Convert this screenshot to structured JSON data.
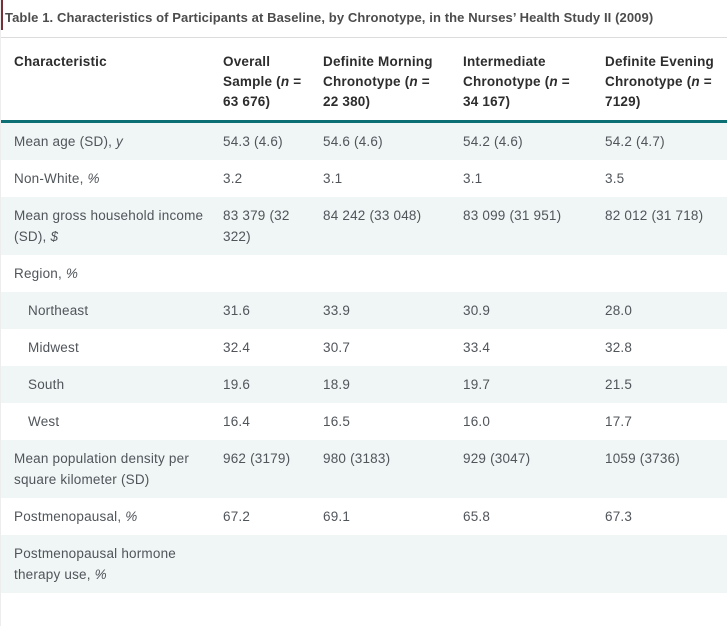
{
  "title": "Table 1. Characteristics of Participants at Baseline, by Chronotype, in the Nurses’ Health Study II (2009)",
  "colors": {
    "header_rule_teal": "#0b6f74",
    "alt_row_background": "#eff6f5",
    "accent_bar_maroon": "#75303a",
    "header_text": "#2d2d2d",
    "body_text": "#50555a",
    "title_text": "#4c4c4c"
  },
  "table": {
    "columns": [
      {
        "pre": "Characteristic",
        "it": "",
        "post": ""
      },
      {
        "pre": "Overall Sample (",
        "it": "n",
        "post": " = 63 676)"
      },
      {
        "pre": "Definite Morning Chronotype (",
        "it": "n",
        "post": " = 22 380)"
      },
      {
        "pre": "Intermediate Chronotype (",
        "it": "n",
        "post": " = 34 167)"
      },
      {
        "pre": "Definite Evening Chronotype (",
        "it": "n",
        "post": " = 7129)"
      }
    ],
    "rows": [
      {
        "label": "Mean age (SD), ",
        "label_it": "y",
        "indent": false,
        "values": [
          "54.3 (4.6)",
          "54.6 (4.6)",
          "54.2 (4.6)",
          "54.2 (4.7)"
        ]
      },
      {
        "label": "Non-White, ",
        "label_it": "%",
        "indent": false,
        "values": [
          "3.2",
          "3.1",
          "3.1",
          "3.5"
        ]
      },
      {
        "label": "Mean gross household income (SD), ",
        "label_it": "$",
        "indent": false,
        "values": [
          "83 379 (32 322)",
          "84 242 (33 048)",
          "83 099 (31 951)",
          "82 012 (31 718)"
        ]
      },
      {
        "label": "Region, ",
        "label_it": "%",
        "indent": false,
        "values": [
          "",
          "",
          "",
          ""
        ]
      },
      {
        "label": "Northeast",
        "label_it": "",
        "indent": true,
        "values": [
          "31.6",
          "33.9",
          "30.9",
          "28.0"
        ]
      },
      {
        "label": "Midwest",
        "label_it": "",
        "indent": true,
        "values": [
          "32.4",
          "30.7",
          "33.4",
          "32.8"
        ]
      },
      {
        "label": "South",
        "label_it": "",
        "indent": true,
        "values": [
          "19.6",
          "18.9",
          "19.7",
          "21.5"
        ]
      },
      {
        "label": "West",
        "label_it": "",
        "indent": true,
        "values": [
          "16.4",
          "16.5",
          "16.0",
          "17.7"
        ]
      },
      {
        "label": "Mean population density per square kilometer (SD)",
        "label_it": "",
        "indent": false,
        "values": [
          "962 (3179)",
          "980 (3183)",
          "929 (3047)",
          "1059 (3736)"
        ]
      },
      {
        "label": "Postmenopausal, ",
        "label_it": "%",
        "indent": false,
        "values": [
          "67.2",
          "69.1",
          "65.8",
          "67.3"
        ]
      },
      {
        "label": "Postmenopausal hormone therapy use, ",
        "label_it": "%",
        "indent": false,
        "values": [
          "",
          "",
          "",
          ""
        ]
      }
    ]
  }
}
